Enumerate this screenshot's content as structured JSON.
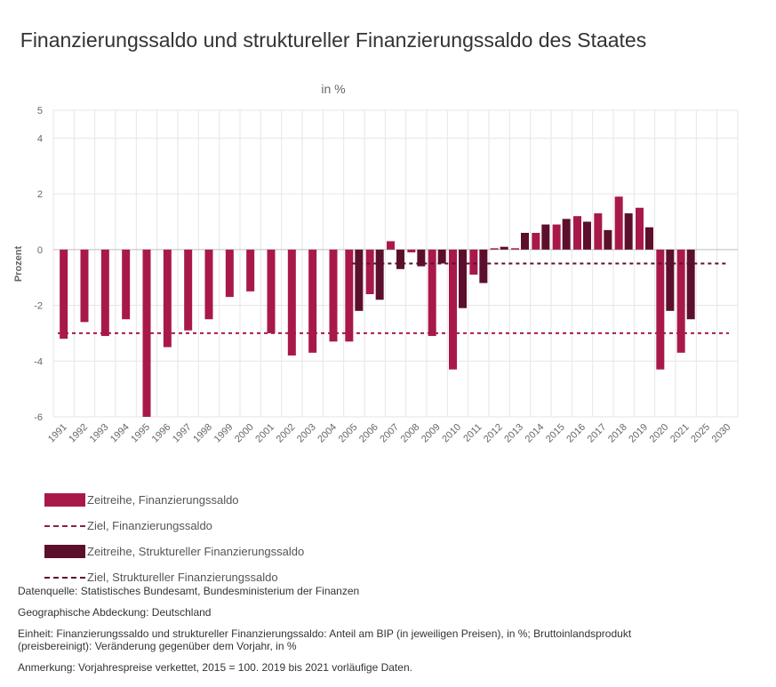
{
  "chart_data": {
    "type": "bar",
    "title": "Finanzierungssaldo und struktureller Finanzierungssaldo des Staates",
    "subtitle": "in %",
    "ylabel": "Prozent",
    "ylim": [
      -6,
      5
    ],
    "yticks": [
      5,
      4,
      2,
      0,
      -2,
      -4,
      -6
    ],
    "categories": [
      "1991",
      "1992",
      "1993",
      "1994",
      "1995",
      "1996",
      "1997",
      "1998",
      "1999",
      "2000",
      "2001",
      "2002",
      "2003",
      "2004",
      "2005",
      "2006",
      "2007",
      "2008",
      "2009",
      "2010",
      "2011",
      "2012",
      "2013",
      "2014",
      "2015",
      "2016",
      "2017",
      "2018",
      "2019",
      "2020",
      "2021",
      "2025",
      "2030"
    ],
    "series": [
      {
        "name": "Zeitreihe, Finanzierungssaldo",
        "type": "bar",
        "color": "#a8194a",
        "values": [
          -3.2,
          -2.6,
          -3.1,
          -2.5,
          -6.0,
          -3.5,
          -2.9,
          -2.5,
          -1.7,
          -1.5,
          -3.0,
          -3.8,
          -3.7,
          -3.3,
          -3.3,
          -1.6,
          0.3,
          -0.1,
          -3.1,
          -4.3,
          -0.9,
          0.0,
          0.0,
          0.6,
          0.9,
          1.2,
          1.3,
          1.9,
          1.5,
          -4.3,
          -3.7,
          null,
          null
        ]
      },
      {
        "name": "Ziel, Finanzierungssaldo",
        "type": "target",
        "color": "#a8194a",
        "value": -3.0
      },
      {
        "name": "Zeitreihe, Struktureller Finanzierungssaldo",
        "type": "bar",
        "color": "#5c0f2c",
        "values": [
          null,
          null,
          null,
          null,
          null,
          null,
          null,
          null,
          null,
          null,
          null,
          null,
          null,
          null,
          -2.2,
          -1.8,
          -0.7,
          -0.6,
          -0.5,
          -2.1,
          -1.2,
          0.1,
          0.6,
          0.9,
          1.1,
          1.0,
          0.7,
          1.3,
          0.8,
          -2.2,
          -2.5,
          null,
          null
        ]
      },
      {
        "name": "Ziel, Struktureller Finanzierungssaldo",
        "type": "target",
        "color": "#5c0f2c",
        "value": -0.5,
        "start": "2005"
      }
    ]
  },
  "legend": [
    {
      "label": "Zeitreihe, Finanzierungssaldo",
      "style": "bar",
      "color": "#a8194a"
    },
    {
      "label": "Ziel, Finanzierungssaldo",
      "style": "dash",
      "color": "#8b1d4a"
    },
    {
      "label": "Zeitreihe, Struktureller Finanzierungssaldo",
      "style": "bar",
      "color": "#5c0f2c"
    },
    {
      "label": "Ziel, Struktureller Finanzierungssaldo",
      "style": "dash",
      "color": "#5c0f2c"
    }
  ],
  "notes": [
    "Datenquelle: Statistisches Bundesamt, Bundesministerium der Finanzen",
    "Geographische Abdeckung: Deutschland",
    "Einheit: Finanzierungssaldo und struktureller Finanzierungssaldo: Anteil am BIP (in jeweiligen Preisen), in %; Bruttoinlandsprodukt (preisbereinigt): Veränderung gegenüber dem Vorjahr, in %",
    "Anmerkung: Vorjahrespreise verkettet, 2015 = 100. 2019 bis 2021 vorläufige Daten."
  ]
}
